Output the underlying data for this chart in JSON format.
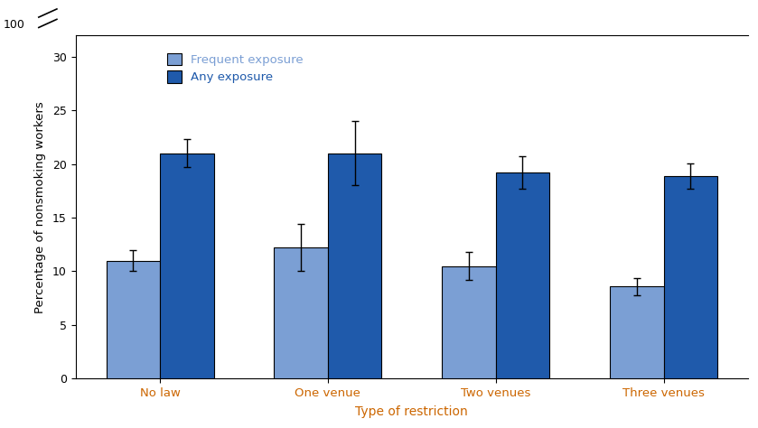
{
  "categories": [
    "No law",
    "One venue",
    "Two venues",
    "Three venues"
  ],
  "frequent_values": [
    11.0,
    12.2,
    10.5,
    8.6
  ],
  "any_values": [
    21.0,
    21.0,
    19.2,
    18.9
  ],
  "frequent_errors": [
    1.0,
    2.2,
    1.3,
    0.8
  ],
  "any_errors": [
    1.3,
    3.0,
    1.5,
    1.2
  ],
  "frequent_color": "#7b9fd4",
  "any_color": "#1f5aab",
  "xlabel": "Type of restriction",
  "ylabel": "Percentage of nonsmoking workers",
  "xlabel_color": "#cc6600",
  "category_color": "#cc6600",
  "legend_frequent": "Frequent exposure",
  "legend_any": "Any exposure",
  "legend_frequent_color": "#7b9fd4",
  "legend_any_color": "#1f5aab",
  "ylim_main": [
    0,
    32
  ],
  "yticks_main": [
    0,
    5,
    10,
    15,
    20,
    25,
    30
  ],
  "ytop_label": "100",
  "bar_width": 0.32,
  "edgecolor": "#000000",
  "figsize": [
    8.39,
    4.74
  ],
  "dpi": 100,
  "background_color": "#ffffff"
}
